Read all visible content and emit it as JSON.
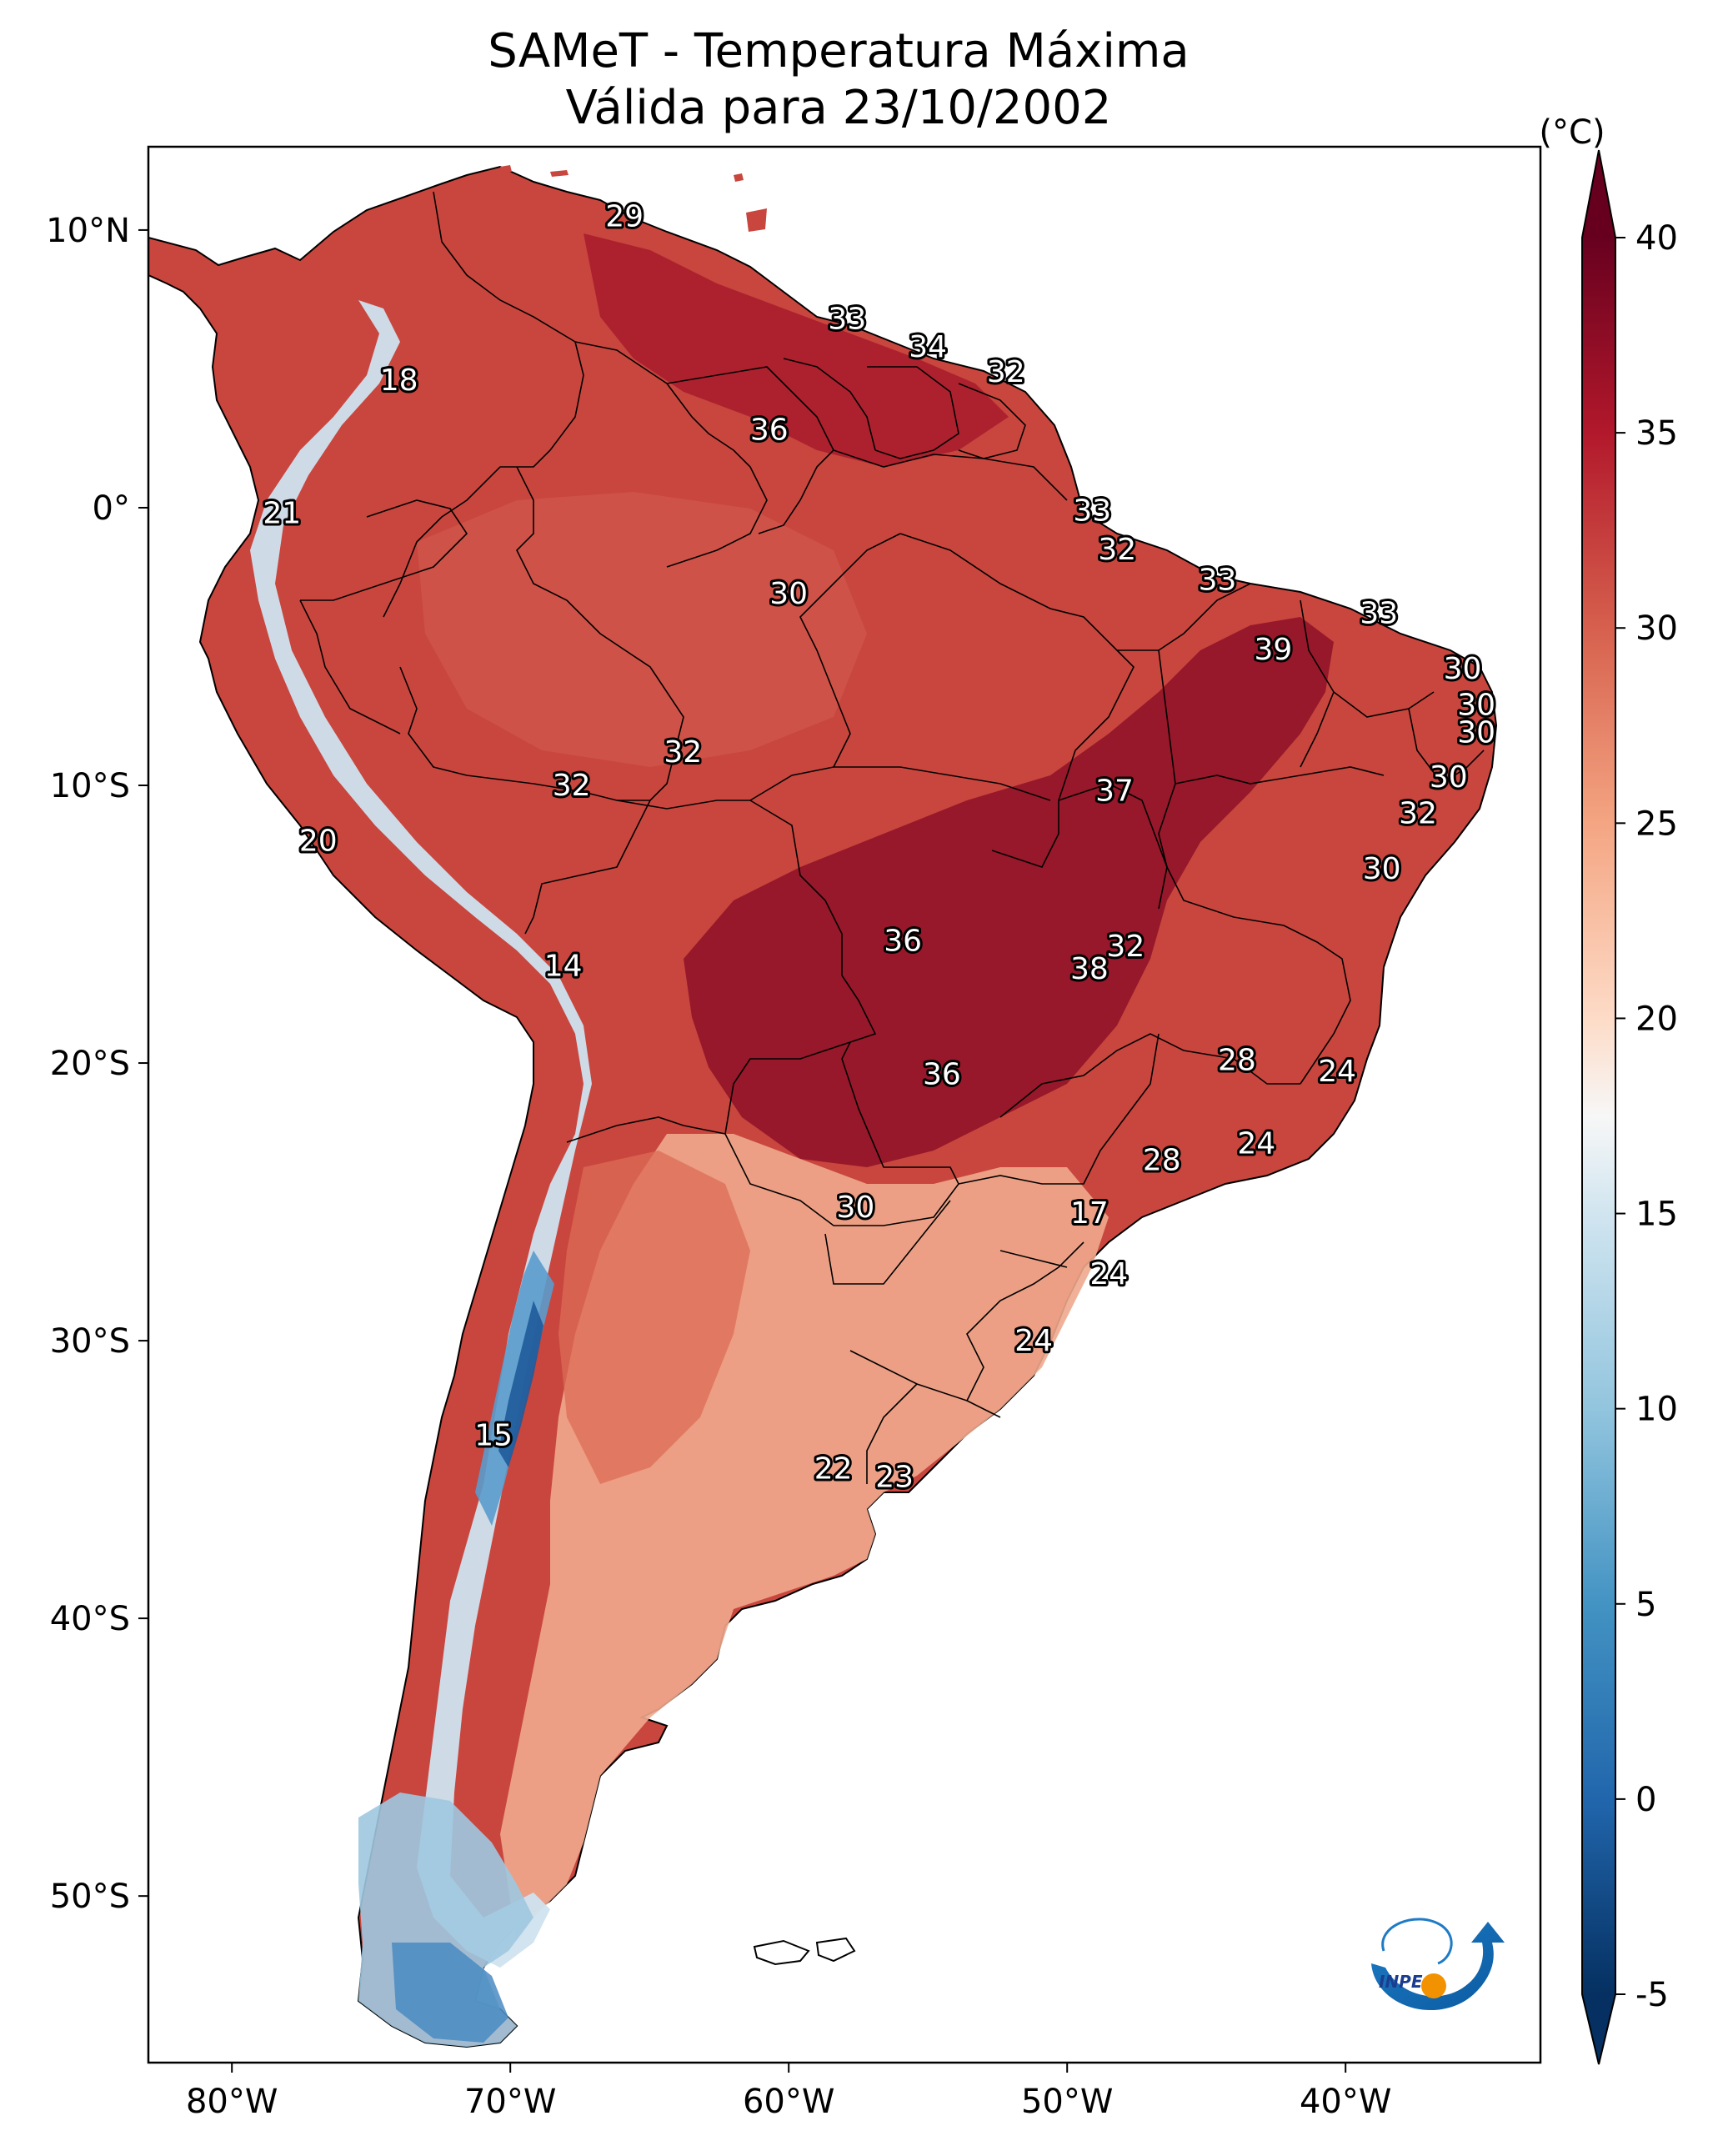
{
  "title": {
    "line1": "SAMeT - Temperatura Máxima",
    "line2": "Válida para 23/10/2002"
  },
  "axes": {
    "lon_range": [
      -83,
      -33
    ],
    "lat_range": [
      -56,
      13
    ],
    "x_ticks": [
      {
        "value": -80,
        "label": "80°W"
      },
      {
        "value": -70,
        "label": "70°W"
      },
      {
        "value": -60,
        "label": "60°W"
      },
      {
        "value": -50,
        "label": "50°W"
      },
      {
        "value": -40,
        "label": "40°W"
      }
    ],
    "y_ticks": [
      {
        "value": 10,
        "label": "10°N"
      },
      {
        "value": 0,
        "label": "0°"
      },
      {
        "value": -10,
        "label": "10°S"
      },
      {
        "value": -20,
        "label": "20°S"
      },
      {
        "value": -30,
        "label": "30°S"
      },
      {
        "value": -40,
        "label": "40°S"
      },
      {
        "value": -50,
        "label": "50°S"
      }
    ]
  },
  "colorbar": {
    "unit_label": "(°C)",
    "min": -5,
    "max": 40,
    "ticks": [
      {
        "value": 40,
        "label": "40"
      },
      {
        "value": 35,
        "label": "35"
      },
      {
        "value": 30,
        "label": "30"
      },
      {
        "value": 25,
        "label": "25"
      },
      {
        "value": 20,
        "label": "20"
      },
      {
        "value": 15,
        "label": "15"
      },
      {
        "value": 10,
        "label": "10"
      },
      {
        "value": 5,
        "label": "5"
      },
      {
        "value": 0,
        "label": "0"
      },
      {
        "value": -5,
        "label": "-5"
      }
    ],
    "stops": [
      {
        "value": -5,
        "color": "#053061"
      },
      {
        "value": 0,
        "color": "#2166ac"
      },
      {
        "value": 5,
        "color": "#4393c3"
      },
      {
        "value": 10,
        "color": "#92c5de"
      },
      {
        "value": 15,
        "color": "#d1e5f0"
      },
      {
        "value": 17.5,
        "color": "#f7f7f7"
      },
      {
        "value": 20,
        "color": "#fddbc7"
      },
      {
        "value": 25,
        "color": "#f4a582"
      },
      {
        "value": 30,
        "color": "#d6604d"
      },
      {
        "value": 35,
        "color": "#b2182b"
      },
      {
        "value": 40,
        "color": "#67001f"
      }
    ]
  },
  "station_values": [
    {
      "lon": -65.9,
      "lat": 10.5,
      "label": "29"
    },
    {
      "lon": -74.0,
      "lat": 4.6,
      "label": "18"
    },
    {
      "lon": -57.9,
      "lat": 6.8,
      "label": "33"
    },
    {
      "lon": -55.0,
      "lat": 5.8,
      "label": "34"
    },
    {
      "lon": -52.2,
      "lat": 4.9,
      "label": "32"
    },
    {
      "lon": -60.7,
      "lat": 2.8,
      "label": "36"
    },
    {
      "lon": -78.2,
      "lat": -0.2,
      "label": "21"
    },
    {
      "lon": -49.1,
      "lat": -0.1,
      "label": "33"
    },
    {
      "lon": -48.2,
      "lat": -1.5,
      "label": "32"
    },
    {
      "lon": -44.6,
      "lat": -2.6,
      "label": "33"
    },
    {
      "lon": -38.8,
      "lat": -3.8,
      "label": "33"
    },
    {
      "lon": -60.0,
      "lat": -3.1,
      "label": "30"
    },
    {
      "lon": -42.6,
      "lat": -5.1,
      "label": "39"
    },
    {
      "lon": -35.8,
      "lat": -5.8,
      "label": "30"
    },
    {
      "lon": -35.3,
      "lat": -7.1,
      "label": "30"
    },
    {
      "lon": -35.3,
      "lat": -8.1,
      "label": "30"
    },
    {
      "lon": -63.8,
      "lat": -8.8,
      "label": "32"
    },
    {
      "lon": -67.8,
      "lat": -10.0,
      "label": "32"
    },
    {
      "lon": -48.3,
      "lat": -10.2,
      "label": "37"
    },
    {
      "lon": -36.3,
      "lat": -9.7,
      "label": "30"
    },
    {
      "lon": -37.4,
      "lat": -11.0,
      "label": "32"
    },
    {
      "lon": -76.9,
      "lat": -12.0,
      "label": "20"
    },
    {
      "lon": -38.7,
      "lat": -13.0,
      "label": "30"
    },
    {
      "lon": -55.9,
      "lat": -15.6,
      "label": "36"
    },
    {
      "lon": -47.9,
      "lat": -15.8,
      "label": "32"
    },
    {
      "lon": -49.2,
      "lat": -16.6,
      "label": "38"
    },
    {
      "lon": -68.1,
      "lat": -16.5,
      "label": "14"
    },
    {
      "lon": -43.9,
      "lat": -19.9,
      "label": "28"
    },
    {
      "lon": -40.3,
      "lat": -20.3,
      "label": "24"
    },
    {
      "lon": -54.5,
      "lat": -20.4,
      "label": "36"
    },
    {
      "lon": -43.2,
      "lat": -22.9,
      "label": "24"
    },
    {
      "lon": -46.6,
      "lat": -23.5,
      "label": "28"
    },
    {
      "lon": -49.2,
      "lat": -25.4,
      "label": "17"
    },
    {
      "lon": -57.6,
      "lat": -25.2,
      "label": "30"
    },
    {
      "lon": -48.5,
      "lat": -27.6,
      "label": "24"
    },
    {
      "lon": -51.2,
      "lat": -30.0,
      "label": "24"
    },
    {
      "lon": -70.6,
      "lat": -33.4,
      "label": "15"
    },
    {
      "lon": -58.4,
      "lat": -34.6,
      "label": "22"
    },
    {
      "lon": -56.2,
      "lat": -34.9,
      "label": "23"
    }
  ],
  "logo": {
    "text": "INPE"
  }
}
